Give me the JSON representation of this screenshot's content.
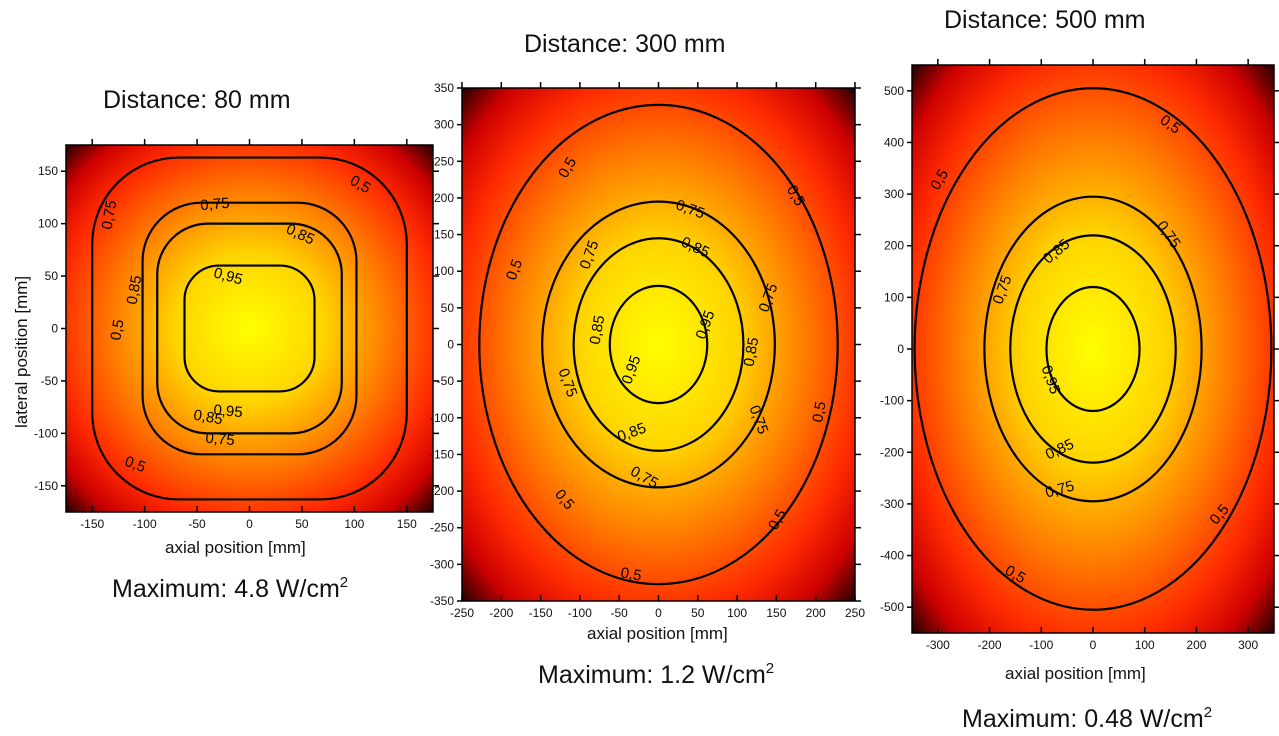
{
  "chart_data": [
    {
      "type": "heatmap",
      "title": "Distance: 80 mm",
      "subtitle_prefix": "Maximum: 4.8 W/cm",
      "subtitle_sup": "2",
      "xlabel": "axial position [mm]",
      "ylabel": "lateral position [mm]",
      "xlim": [
        -175,
        175
      ],
      "ylim": [
        -175,
        175
      ],
      "xticks": [
        -150,
        -100,
        -50,
        0,
        50,
        100,
        150
      ],
      "yticks": [
        -150,
        -100,
        -50,
        0,
        50,
        100,
        150
      ],
      "grid": false,
      "colormap": [
        "#000000",
        "#cc0000",
        "#ff2a00",
        "#ff7a00",
        "#ffd400",
        "#ffff00"
      ],
      "contours": [
        {
          "level": 0.5,
          "label": "0,5",
          "rx": 150,
          "ry": 163
        },
        {
          "level": 0.75,
          "label": "0,75",
          "rx": 102,
          "ry": 120
        },
        {
          "level": 0.85,
          "label": "0,85",
          "rx": 88,
          "ry": 100
        },
        {
          "level": 0.95,
          "label": "0,95",
          "rx": 62,
          "ry": 60
        }
      ]
    },
    {
      "type": "heatmap",
      "title": "Distance: 300 mm",
      "subtitle_prefix": "Maximum: 1.2 W/cm",
      "subtitle_sup": "2",
      "xlabel": "axial position [mm]",
      "ylabel": "",
      "xlim": [
        -250,
        250
      ],
      "ylim": [
        -350,
        350
      ],
      "xticks": [
        -250,
        -200,
        -150,
        -100,
        -50,
        0,
        50,
        100,
        150,
        200,
        250
      ],
      "yticks": [
        -350,
        -300,
        -250,
        -200,
        -150,
        -100,
        -50,
        0,
        50,
        100,
        150,
        200,
        250,
        300,
        350
      ],
      "grid": false,
      "colormap": [
        "#000000",
        "#cc0000",
        "#ff2a00",
        "#ff7a00",
        "#ffd400",
        "#ffff00"
      ],
      "contours": [
        {
          "level": 0.5,
          "label": "0,5",
          "rx": 228,
          "ry": 327
        },
        {
          "level": 0.75,
          "label": "0,75",
          "rx": 148,
          "ry": 195
        },
        {
          "level": 0.85,
          "label": "0,85",
          "rx": 108,
          "ry": 145
        },
        {
          "level": 0.95,
          "label": "0,95",
          "rx": 62,
          "ry": 80
        }
      ]
    },
    {
      "type": "heatmap",
      "title": "Distance: 500 mm",
      "subtitle_prefix": "Maximum: 0.48 W/cm",
      "subtitle_sup": "2",
      "xlabel": "axial position [mm]",
      "ylabel": "",
      "xlim": [
        -350,
        350
      ],
      "ylim": [
        -550,
        550
      ],
      "xticks": [
        -300,
        -200,
        -100,
        0,
        100,
        200,
        300
      ],
      "yticks": [
        -500,
        -400,
        -300,
        -200,
        -100,
        0,
        100,
        200,
        300,
        400,
        500
      ],
      "grid": false,
      "colormap": [
        "#000000",
        "#cc0000",
        "#ff2a00",
        "#ff7a00",
        "#ffd400",
        "#ffff00"
      ],
      "contours": [
        {
          "level": 0.5,
          "label": "0,5",
          "rx": 345,
          "ry": 505
        },
        {
          "level": 0.75,
          "label": "0,75",
          "rx": 210,
          "ry": 295
        },
        {
          "level": 0.85,
          "label": "0,85",
          "rx": 160,
          "ry": 220
        },
        {
          "level": 0.95,
          "label": "0,95",
          "rx": 90,
          "ry": 120
        }
      ]
    }
  ]
}
